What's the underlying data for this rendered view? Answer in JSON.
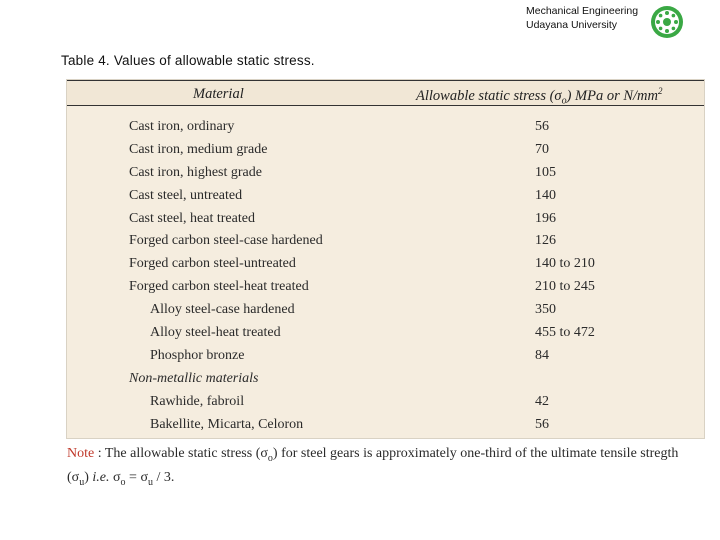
{
  "header": {
    "line1": "Mechanical Engineering",
    "line2": "Udayana University",
    "logo_icon": "university-logo-icon",
    "logo_color": "#3aa844"
  },
  "caption": "Table 4. Values of allowable static stress.",
  "table": {
    "columns": {
      "material": "Material",
      "stress_prefix": "Allowable static stress (σ",
      "stress_sub": "o",
      "stress_suffix": ") MPa or N/mm",
      "stress_sup": "2"
    },
    "rows": [
      {
        "material": "Cast iron, ordinary",
        "value": "56"
      },
      {
        "material": "Cast iron, medium grade",
        "value": "70"
      },
      {
        "material": "Cast iron, highest grade",
        "value": "105"
      },
      {
        "material": "Cast steel, untreated",
        "value": "140"
      },
      {
        "material": "Cast steel, heat treated",
        "value": "196"
      },
      {
        "material": "Forged carbon steel-case hardened",
        "value": "126"
      },
      {
        "material": "Forged carbon steel-untreated",
        "value": "140 to 210"
      },
      {
        "material": "Forged carbon steel-heat treated",
        "value": "210 to 245"
      },
      {
        "material": "Alloy steel-case hardened",
        "value": "350"
      },
      {
        "material": "Alloy steel-heat treated",
        "value": "455 to 472"
      },
      {
        "material": "Phosphor bronze",
        "value": "84"
      },
      {
        "material": "Non-metallic materials",
        "value": ""
      },
      {
        "material": "Rawhide, fabroil",
        "value": "42"
      },
      {
        "material": "Bakellite, Micarta, Celoron",
        "value": "56"
      }
    ],
    "background_color": "#f5eddf"
  },
  "note": {
    "label": "Note",
    "line1_text": " : The allowable static stress (σ",
    "line1_sub": "o",
    "line1_rest": ") for steel gears is approximately one-third of the ultimate tensile stregth",
    "line2_a": "(σ",
    "line2_a_sub": "u",
    "line2_b": ") ",
    "line2_ie": "i.e.",
    "line2_c": " σ",
    "line2_c_sub": "o",
    "line2_d": " = σ",
    "line2_d_sub": "u",
    "line2_e": " / 3.",
    "label_color": "#c0392b"
  }
}
